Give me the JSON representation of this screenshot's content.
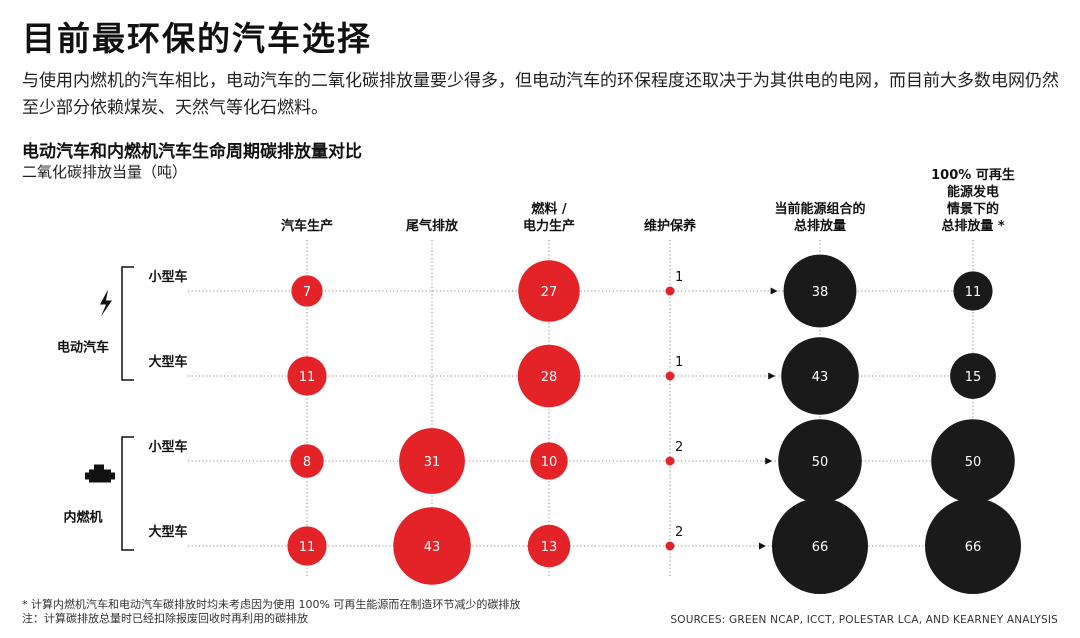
{
  "title": "目前最环保的汽车选择",
  "subtitle": "与使用内燃机的汽车相比，电动汽车的二氧化碳排放量要少得多，但电动汽车的环保程度还取决于为其供电的电网，而目前大多数电网仍然至少部分依赖煤炭、天然气等化石燃料。",
  "footnotes": [
    "* 计算内燃机汽车和电动汽车碳排放时均未考虑因为使用 100% 可再生能源而在制造环节减少的碳排放",
    "注：计算碳排放总量时已经扣除报废回收时再利用的碳排放"
  ],
  "sources": "SOURCES: GREEN NCAP, ICCT, POLESTAR LCA, AND KEARNEY ANALYSIS",
  "colors": {
    "red": "#e32327",
    "black": "#1a1a1a",
    "grid": "#8a8a8a"
  },
  "chart_data": {
    "type": "bubble-table",
    "title": "电动汽车和内燃机汽车生命周期碳排放量对比",
    "unit": "二氧化碳排放当量（吨）",
    "columns": [
      {
        "lines": [
          "汽车生产"
        ],
        "color": "red"
      },
      {
        "lines": [
          "尾气排放"
        ],
        "color": "red"
      },
      {
        "lines": [
          "燃料 /",
          "电力生产"
        ],
        "color": "red"
      },
      {
        "lines": [
          "维护保养"
        ],
        "color": "red"
      },
      {
        "lines": [
          "当前能源组合的",
          "总排放量"
        ],
        "color": "black"
      },
      {
        "lines": [
          "100% 可再生",
          "能源发电",
          "情景下的",
          "总排放量 *"
        ],
        "color": "black"
      }
    ],
    "groups": [
      {
        "name": "电动汽车",
        "icon": "lightning-bolt-icon",
        "rows": [
          "小型车",
          "大型车"
        ]
      },
      {
        "name": "内燃机",
        "icon": "engine-icon",
        "rows": [
          "小型车",
          "大型车"
        ]
      }
    ],
    "values": [
      [
        7,
        null,
        27,
        1,
        38,
        11
      ],
      [
        11,
        null,
        28,
        1,
        43,
        15
      ],
      [
        8,
        31,
        10,
        2,
        50,
        50
      ],
      [
        11,
        43,
        13,
        2,
        66,
        66
      ]
    ]
  }
}
